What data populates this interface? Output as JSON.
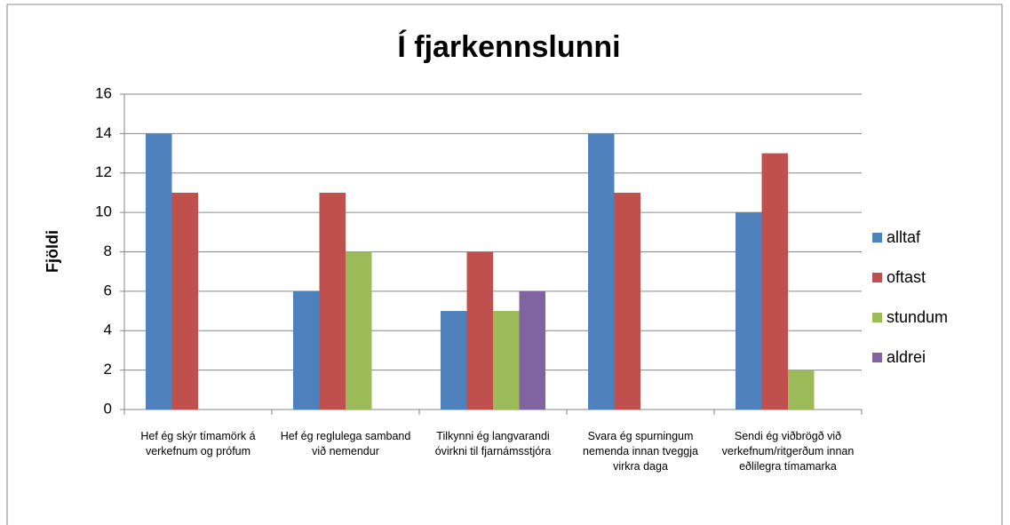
{
  "chart_data": {
    "type": "bar",
    "title": "Í fjarkennslunni",
    "y_label": "Fjöldi",
    "categories": [
      "Hef ég skýr tímamörk á verkefnum og prófum",
      "Hef ég reglulega samband við nemendur",
      "Tilkynni ég langvarandi óvirkni til fjarnámsstjóra",
      "Svara ég spurningum nemenda innan tveggja virkra daga",
      "Sendi ég viðbrögð við verkefnum/ritgerðum innan eðlilegra tímamarka"
    ],
    "series": [
      {
        "name": "alltaf",
        "color": "#4f81bd",
        "values": [
          14,
          6,
          5,
          14,
          10
        ]
      },
      {
        "name": "oftast",
        "color": "#c0504d",
        "values": [
          11,
          11,
          8,
          11,
          13
        ]
      },
      {
        "name": "stundum",
        "color": "#9bbb59",
        "values": [
          null,
          8,
          5,
          null,
          2
        ]
      },
      {
        "name": "aldrei",
        "color": "#8064a2",
        "values": [
          null,
          null,
          6,
          null,
          null
        ]
      }
    ],
    "ylim": [
      0,
      16
    ],
    "yticks": [
      0,
      2,
      4,
      6,
      8,
      10,
      12,
      14,
      16
    ],
    "grid": true,
    "legend": "right"
  }
}
